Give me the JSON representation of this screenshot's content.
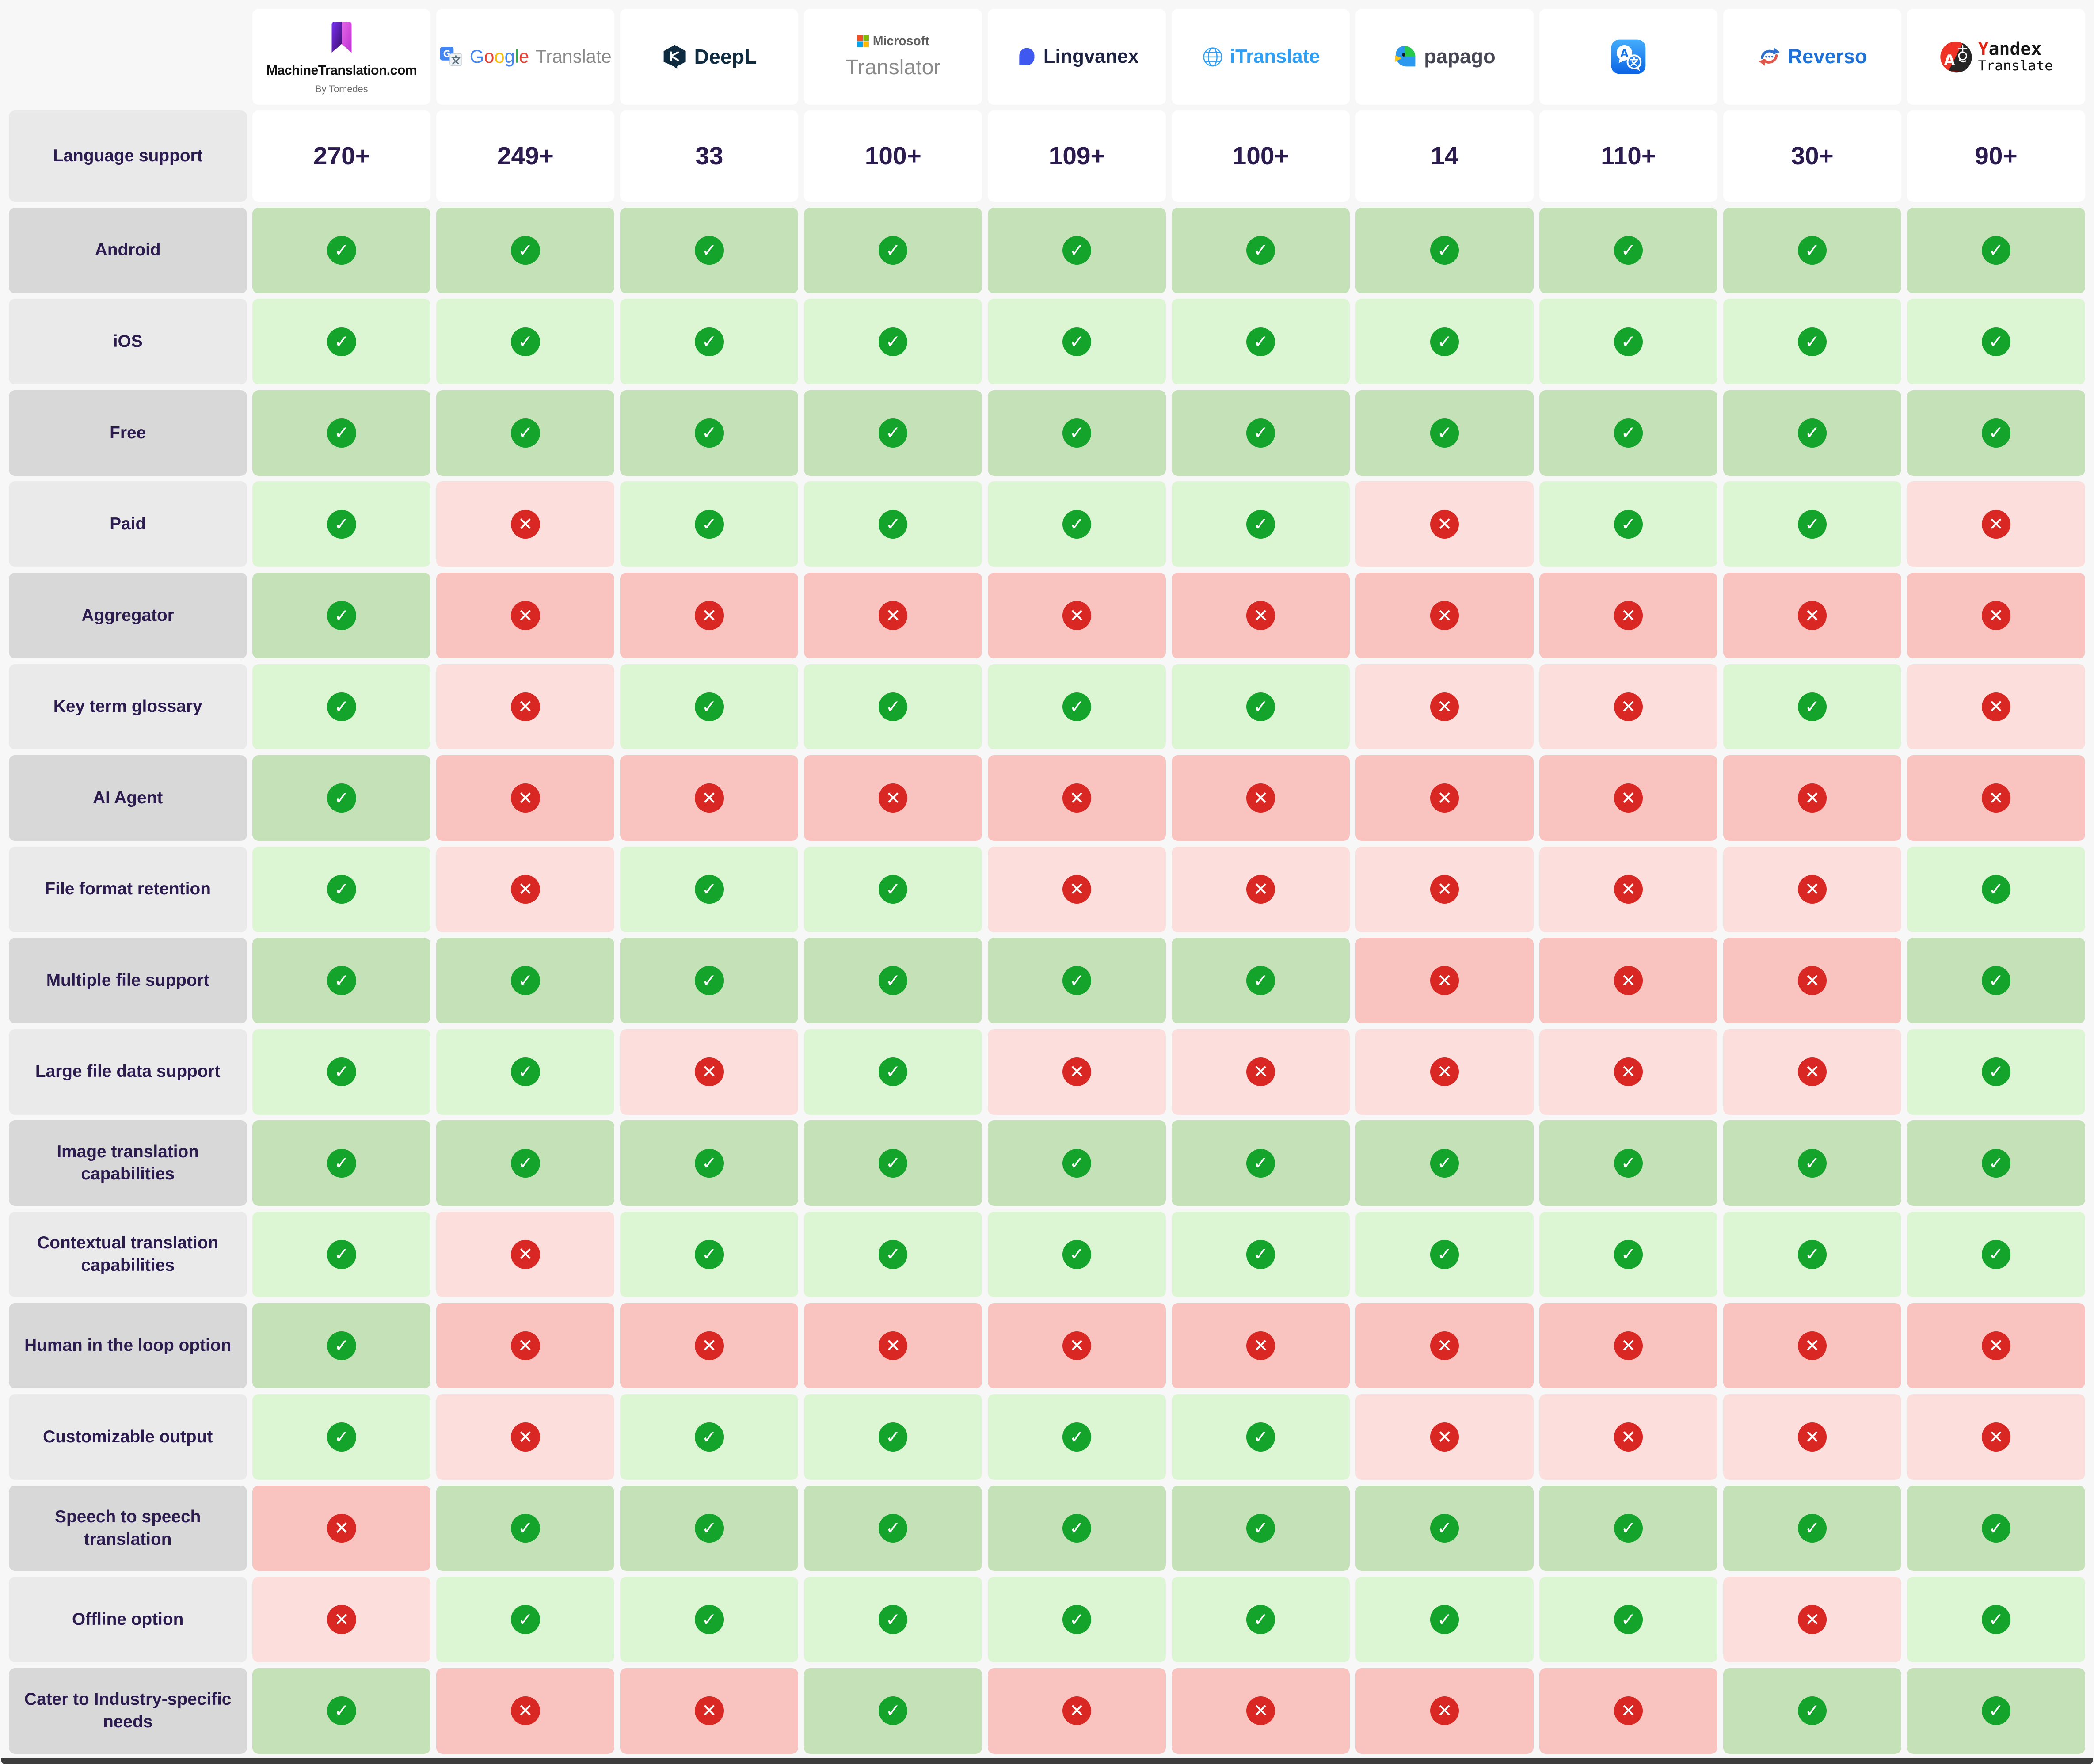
{
  "table": {
    "language_support_label": "Language support",
    "columns": [
      {
        "id": "machinetranslation",
        "label": "MachineTranslation.com",
        "sublabel": "By Tomedes",
        "icon": "machinetranslation-logo-icon",
        "language_support": "270+"
      },
      {
        "id": "google-translate",
        "label": "Google",
        "label2": "Translate",
        "icon": "google-translate-logo-icon",
        "language_support": "249+"
      },
      {
        "id": "deepl",
        "label": "DeepL",
        "icon": "deepl-logo-icon",
        "language_support": "33"
      },
      {
        "id": "microsoft-translator",
        "label": "Microsoft",
        "label2": "Translator",
        "icon": "microsoft-logo-icon",
        "language_support": "100+"
      },
      {
        "id": "lingvanex",
        "label": "Lingvanex",
        "icon": "lingvanex-logo-icon",
        "language_support": "109+"
      },
      {
        "id": "itranslate",
        "label": "iTranslate",
        "icon": "itranslate-globe-icon",
        "language_support": "100+"
      },
      {
        "id": "papago",
        "label": "papago",
        "icon": "papago-parrot-icon",
        "language_support": "14"
      },
      {
        "id": "apple-translate",
        "label": "",
        "icon": "apple-translate-app-icon",
        "language_support": "110+"
      },
      {
        "id": "reverso",
        "label": "Reverso",
        "icon": "reverso-arrows-icon",
        "language_support": "30+"
      },
      {
        "id": "yandex-translate",
        "label": "Yandex",
        "label2": "Translate",
        "icon": "yandex-translate-logo-icon",
        "language_support": "90+"
      }
    ],
    "features": [
      {
        "label": "Android",
        "values": [
          true,
          true,
          true,
          true,
          true,
          true,
          true,
          true,
          true,
          true
        ]
      },
      {
        "label": "iOS",
        "values": [
          true,
          true,
          true,
          true,
          true,
          true,
          true,
          true,
          true,
          true
        ]
      },
      {
        "label": "Free",
        "values": [
          true,
          true,
          true,
          true,
          true,
          true,
          true,
          true,
          true,
          true
        ]
      },
      {
        "label": "Paid",
        "values": [
          true,
          false,
          true,
          true,
          true,
          true,
          false,
          true,
          true,
          false
        ]
      },
      {
        "label": "Aggregator",
        "values": [
          true,
          false,
          false,
          false,
          false,
          false,
          false,
          false,
          false,
          false
        ]
      },
      {
        "label": "Key term glossary",
        "values": [
          true,
          false,
          true,
          true,
          true,
          true,
          false,
          false,
          true,
          false
        ]
      },
      {
        "label": "AI Agent",
        "values": [
          true,
          false,
          false,
          false,
          false,
          false,
          false,
          false,
          false,
          false
        ]
      },
      {
        "label": "File format retention",
        "values": [
          true,
          false,
          true,
          true,
          false,
          false,
          false,
          false,
          false,
          true
        ]
      },
      {
        "label": "Multiple file support",
        "values": [
          true,
          true,
          true,
          true,
          true,
          true,
          false,
          false,
          false,
          true
        ]
      },
      {
        "label": "Large file data support",
        "values": [
          true,
          true,
          false,
          true,
          false,
          false,
          false,
          false,
          false,
          true
        ]
      },
      {
        "label": "Image translation capabilities",
        "values": [
          true,
          true,
          true,
          true,
          true,
          true,
          true,
          true,
          true,
          true
        ]
      },
      {
        "label": "Contextual translation capabilities",
        "values": [
          true,
          false,
          true,
          true,
          true,
          true,
          true,
          true,
          true,
          true
        ]
      },
      {
        "label": "Human in the loop option",
        "values": [
          true,
          false,
          false,
          false,
          false,
          false,
          false,
          false,
          false,
          false
        ]
      },
      {
        "label": "Customizable output",
        "values": [
          true,
          false,
          true,
          true,
          true,
          true,
          false,
          false,
          false,
          false
        ]
      },
      {
        "label": "Speech to speech translation",
        "values": [
          false,
          true,
          true,
          true,
          true,
          true,
          true,
          true,
          true,
          true
        ]
      },
      {
        "label": "Offline option",
        "values": [
          false,
          true,
          true,
          true,
          true,
          true,
          true,
          true,
          false,
          true
        ]
      },
      {
        "label": "Cater to Industry-specific needs",
        "values": [
          true,
          false,
          false,
          true,
          false,
          false,
          false,
          false,
          true,
          true
        ]
      }
    ]
  },
  "glyphs": {
    "check": "✓",
    "cross": "✕"
  },
  "colors": {
    "check_green": "#14a32b",
    "cross_red": "#d92723",
    "cell_green_dark": "#c5e1b8",
    "cell_green_light": "#dcf5d2",
    "cell_pink_dark": "#f9c3c0",
    "cell_pink_light": "#fcdfdd",
    "label_gray_dark": "#d8d8d8",
    "label_gray_light": "#eaeaea",
    "header_text": "#2b1b4f",
    "page_bg": "#f7f7f7",
    "card_bg": "#ffffff",
    "google_letter_colors": [
      "#4285F4",
      "#EA4335",
      "#FBBC05",
      "#4285F4",
      "#34A853",
      "#EA4335"
    ]
  },
  "chart_data": {
    "type": "table",
    "title": "Machine translation tools feature comparison",
    "columns": [
      "MachineTranslation.com",
      "Google Translate",
      "DeepL",
      "Microsoft Translator",
      "Lingvanex",
      "iTranslate",
      "papago",
      "Apple Translate",
      "Reverso",
      "Yandex Translate"
    ],
    "rows": [
      {
        "feature": "Language support",
        "values": [
          "270+",
          "249+",
          "33",
          "100+",
          "109+",
          "100+",
          "14",
          "110+",
          "30+",
          "90+"
        ]
      },
      {
        "feature": "Android",
        "values": [
          "yes",
          "yes",
          "yes",
          "yes",
          "yes",
          "yes",
          "yes",
          "yes",
          "yes",
          "yes"
        ]
      },
      {
        "feature": "iOS",
        "values": [
          "yes",
          "yes",
          "yes",
          "yes",
          "yes",
          "yes",
          "yes",
          "yes",
          "yes",
          "yes"
        ]
      },
      {
        "feature": "Free",
        "values": [
          "yes",
          "yes",
          "yes",
          "yes",
          "yes",
          "yes",
          "yes",
          "yes",
          "yes",
          "yes"
        ]
      },
      {
        "feature": "Paid",
        "values": [
          "yes",
          "no",
          "yes",
          "yes",
          "yes",
          "yes",
          "no",
          "yes",
          "yes",
          "no"
        ]
      },
      {
        "feature": "Aggregator",
        "values": [
          "yes",
          "no",
          "no",
          "no",
          "no",
          "no",
          "no",
          "no",
          "no",
          "no"
        ]
      },
      {
        "feature": "Key term glossary",
        "values": [
          "yes",
          "no",
          "yes",
          "yes",
          "yes",
          "yes",
          "no",
          "no",
          "yes",
          "no"
        ]
      },
      {
        "feature": "AI Agent",
        "values": [
          "yes",
          "no",
          "no",
          "no",
          "no",
          "no",
          "no",
          "no",
          "no",
          "no"
        ]
      },
      {
        "feature": "File format retention",
        "values": [
          "yes",
          "no",
          "yes",
          "yes",
          "no",
          "no",
          "no",
          "no",
          "no",
          "yes"
        ]
      },
      {
        "feature": "Multiple file support",
        "values": [
          "yes",
          "yes",
          "yes",
          "yes",
          "yes",
          "yes",
          "no",
          "no",
          "no",
          "yes"
        ]
      },
      {
        "feature": "Large file data support",
        "values": [
          "yes",
          "yes",
          "no",
          "yes",
          "no",
          "no",
          "no",
          "no",
          "no",
          "yes"
        ]
      },
      {
        "feature": "Image translation capabilities",
        "values": [
          "yes",
          "yes",
          "yes",
          "yes",
          "yes",
          "yes",
          "yes",
          "yes",
          "yes",
          "yes"
        ]
      },
      {
        "feature": "Contextual translation capabilities",
        "values": [
          "yes",
          "no",
          "yes",
          "yes",
          "yes",
          "yes",
          "yes",
          "yes",
          "yes",
          "yes"
        ]
      },
      {
        "feature": "Human in the loop option",
        "values": [
          "yes",
          "no",
          "no",
          "no",
          "no",
          "no",
          "no",
          "no",
          "no",
          "no"
        ]
      },
      {
        "feature": "Customizable output",
        "values": [
          "yes",
          "no",
          "yes",
          "yes",
          "yes",
          "yes",
          "no",
          "no",
          "no",
          "no"
        ]
      },
      {
        "feature": "Speech to speech translation",
        "values": [
          "no",
          "yes",
          "yes",
          "yes",
          "yes",
          "yes",
          "yes",
          "yes",
          "yes",
          "yes"
        ]
      },
      {
        "feature": "Offline option",
        "values": [
          "no",
          "yes",
          "yes",
          "yes",
          "yes",
          "yes",
          "yes",
          "yes",
          "no",
          "yes"
        ]
      },
      {
        "feature": "Cater to Industry-specific needs",
        "values": [
          "yes",
          "no",
          "no",
          "yes",
          "no",
          "no",
          "no",
          "no",
          "yes",
          "yes"
        ]
      }
    ]
  }
}
